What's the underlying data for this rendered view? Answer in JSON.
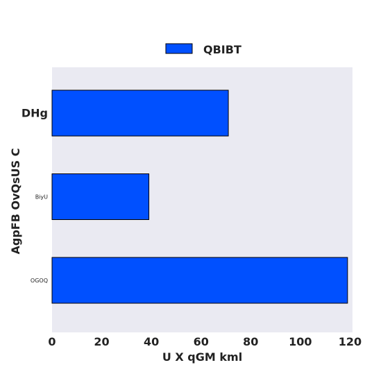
{
  "chart_data": {
    "type": "bar",
    "orientation": "horizontal",
    "categories": [
      "DHg",
      "BiyU",
      "OGOQ"
    ],
    "series": [
      {
        "name": "QBIBT",
        "values": [
          71,
          39,
          119
        ]
      }
    ],
    "x_ticks": [
      "0",
      "20",
      "40",
      "60",
      "80",
      "100",
      "120"
    ],
    "xlabel": "U X qGM  kml",
    "ylabel": "AgpFB OvQsUS C",
    "xlim": [
      0,
      121
    ],
    "grid": false,
    "legend_position": "top-center",
    "colors": {
      "bar": "#0050ff",
      "bar_edge": "#000000",
      "plot_background": "#eaeaf2"
    }
  }
}
